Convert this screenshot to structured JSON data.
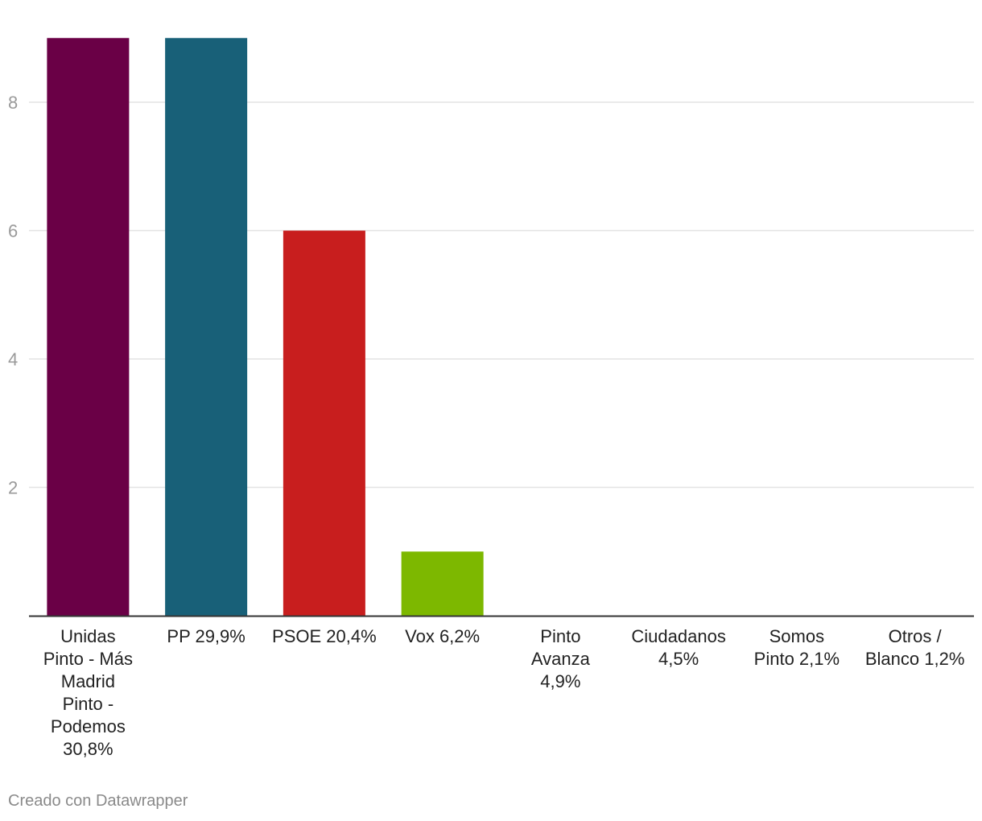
{
  "chart_data": {
    "type": "bar",
    "categories": [
      [
        "Unidas",
        "Pinto - Más",
        "Madrid",
        "Pinto -",
        "Podemos",
        "30,8%"
      ],
      [
        "PP 29,9%"
      ],
      [
        "PSOE 20,4%"
      ],
      [
        "Vox 6,2%"
      ],
      [
        "Pinto",
        "Avanza",
        "4,9%"
      ],
      [
        "Ciudadanos",
        "4,5%"
      ],
      [
        "Somos",
        "Pinto 2,1%"
      ],
      [
        "Otros /",
        "Blanco 1,2%"
      ]
    ],
    "values": [
      9,
      9,
      6,
      1,
      0,
      0,
      0,
      0
    ],
    "colors": [
      "#6a0046",
      "#186078",
      "#c81e1e",
      "#7db800",
      "#cccccc",
      "#cccccc",
      "#cccccc",
      "#cccccc"
    ],
    "yticks": [
      2,
      4,
      6,
      8
    ],
    "ylim": [
      0,
      9
    ],
    "grid": true,
    "title": "",
    "xlabel": "",
    "ylabel": ""
  },
  "footer": {
    "credit": "Creado con Datawrapper"
  }
}
